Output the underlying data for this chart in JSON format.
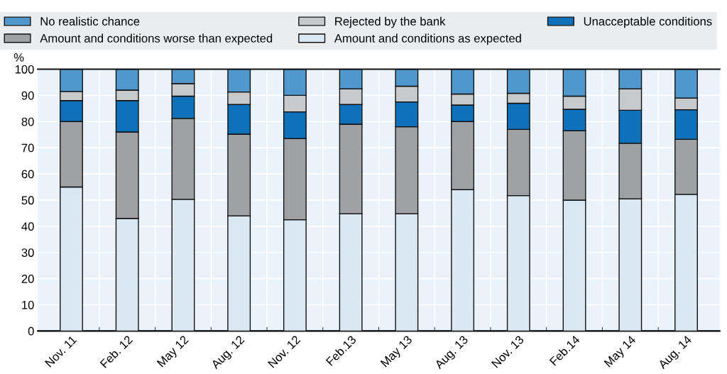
{
  "chart_data": {
    "type": "bar",
    "stacked": true,
    "ylabel": "%",
    "categories": [
      "Nov. 11",
      "Feb. 12",
      "May 12",
      "Aug. 12",
      "Nov. 12",
      "Feb.13",
      "May 13",
      "Aug. 13",
      "Nov. 13",
      "Feb.14",
      "May 14",
      "Aug. 14"
    ],
    "series": [
      {
        "name": "Amount and conditions as expected",
        "color": "#d9e8f3",
        "values": [
          55,
          43,
          50.3,
          44,
          42.5,
          44.8,
          44.8,
          54,
          51.7,
          50,
          50.5,
          52.2
        ]
      },
      {
        "name": "Amount and conditions worse than expected",
        "color": "#a0a1a5",
        "values": [
          25,
          33,
          30.9,
          31.2,
          31,
          34.2,
          33.2,
          26,
          25.3,
          26.5,
          21.2,
          21
        ]
      },
      {
        "name": "Unacceptable conditions",
        "color": "#0f71b9",
        "values": [
          8,
          12,
          8.5,
          11.3,
          10.2,
          7.5,
          9.5,
          6.3,
          10,
          8.2,
          12.6,
          11.3
        ]
      },
      {
        "name": "Rejected by the bank",
        "color": "#c8c9cb",
        "values": [
          3.5,
          4,
          4.8,
          4.8,
          6.3,
          6,
          6,
          4.2,
          3.8,
          5,
          8.2,
          4.5
        ]
      },
      {
        "name": "No realistic chance",
        "color": "#4f97cc",
        "values": [
          8.5,
          8,
          5.5,
          8.7,
          10,
          7.5,
          6.5,
          9.5,
          9.2,
          10.3,
          7.5,
          11
        ]
      }
    ],
    "ylim": [
      0,
      100
    ],
    "yticks": [
      0,
      10,
      20,
      30,
      40,
      50,
      60,
      70,
      80,
      90,
      100
    ],
    "grid": true,
    "legend": "top"
  }
}
